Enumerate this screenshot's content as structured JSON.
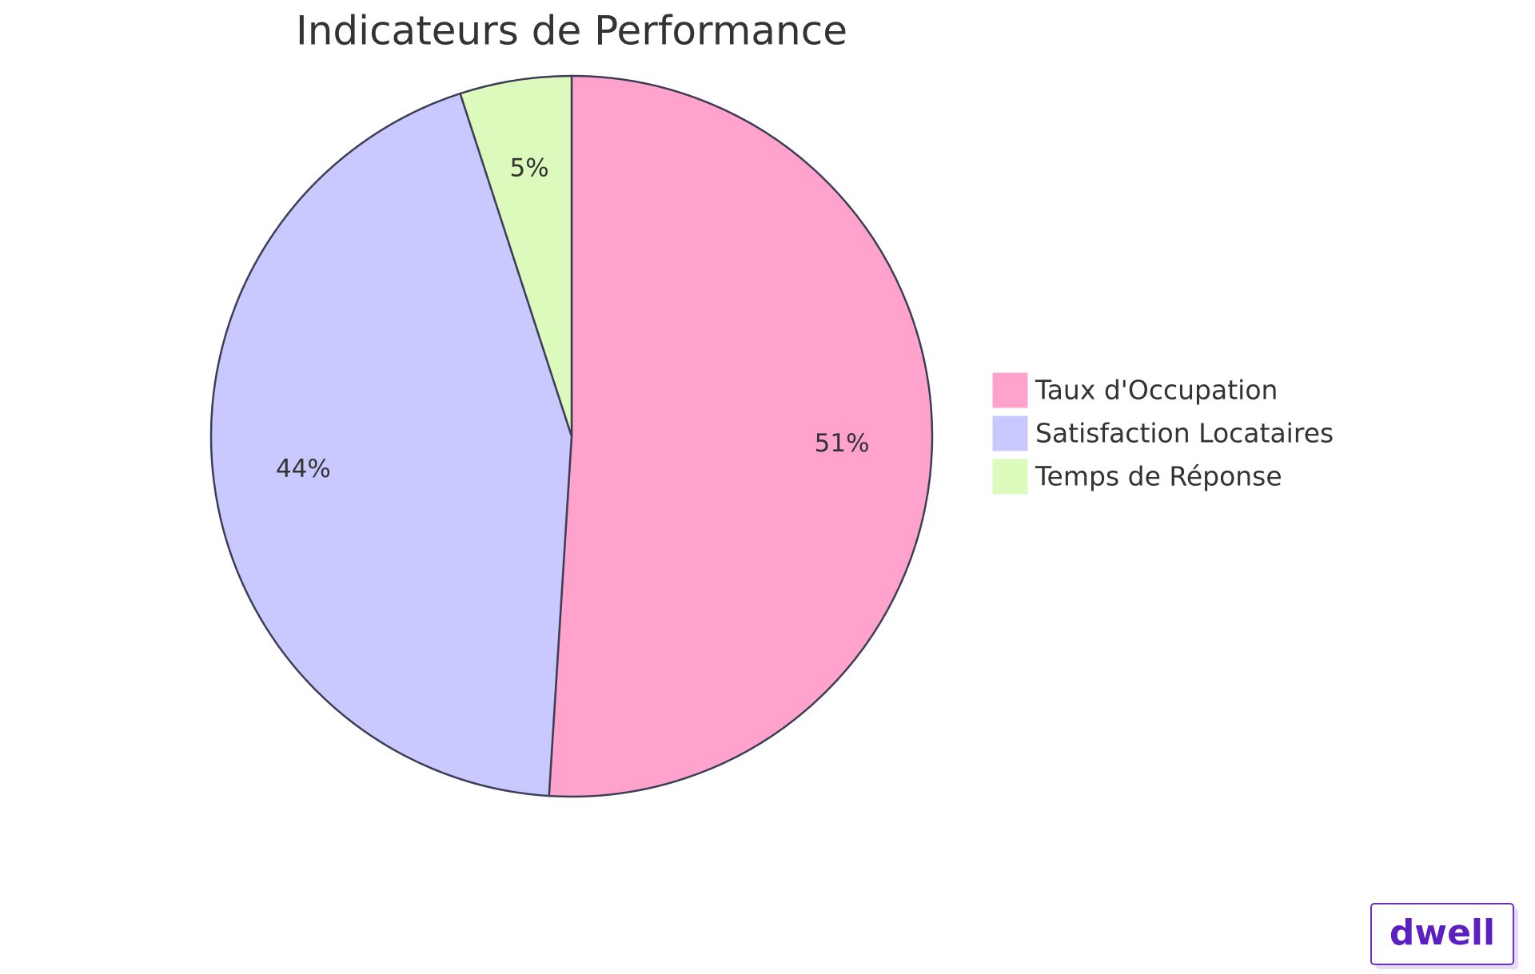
{
  "chart_data": {
    "type": "pie",
    "title": "Indicateurs de Performance",
    "categories": [
      "Taux d'Occupation",
      "Satisfaction Locataires",
      "Temps de Réponse"
    ],
    "values": [
      51,
      44,
      5
    ],
    "value_labels": [
      "51%",
      "44%",
      "5%"
    ],
    "colors": [
      "#ffa3cd",
      "#c9c9ff",
      "#dbfabb"
    ],
    "legend": "right"
  },
  "watermark": "dwell"
}
